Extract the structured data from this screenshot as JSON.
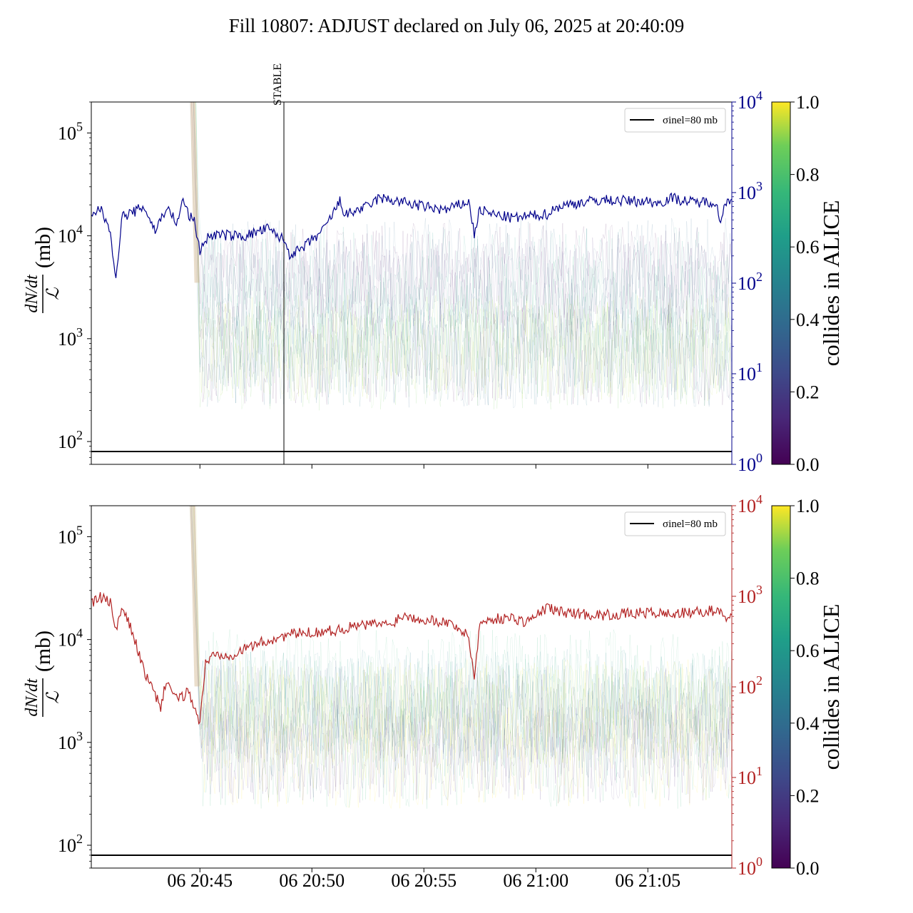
{
  "title": "Fill 10807: ADJUST declared on July 06, 2025 at 20:40:09",
  "colorbar": {
    "label": "collides in ALICE",
    "ticks": [
      "0.0",
      "0.2",
      "0.4",
      "0.6",
      "0.8",
      "1.0"
    ]
  },
  "colors": {
    "top_series": "#00008b",
    "bottom_series": "#b22222",
    "bottom_right_axis": "#b22222",
    "top_right_axis": "#00008b"
  },
  "chart_data": [
    {
      "type": "line",
      "panel": "top",
      "y_label_num": "dN/dt",
      "y_label_den": "ℒ",
      "y_label_unit": "(mb)",
      "y_scale": "log",
      "ylim": [
        60,
        200000
      ],
      "y_ticks": [
        100,
        1000,
        10000,
        100000
      ],
      "y2_scale": "log",
      "y2lim": [
        1,
        10000
      ],
      "y2_ticks": [
        1,
        10,
        100,
        1000,
        10000
      ],
      "x_range": [
        "20:40:09",
        "21:08:45"
      ],
      "x_ticks": [
        "06 20:45",
        "06 20:50",
        "06 20:55",
        "06 21:00",
        "06 21:05"
      ],
      "vline": {
        "label": "STABLE",
        "x": "20:48:45"
      },
      "hline": {
        "label": "σinel=80 mb",
        "value": 80
      },
      "series_main": {
        "axis": "right",
        "x": [
          "20:40:09",
          "20:40:30",
          "20:41:00",
          "20:41:15",
          "20:41:30",
          "20:42:00",
          "20:42:30",
          "20:43:00",
          "20:43:30",
          "20:44:00",
          "20:44:15",
          "20:44:30",
          "20:44:45",
          "20:45:00",
          "20:45:15",
          "20:45:30",
          "20:46:00",
          "20:47:00",
          "20:48:00",
          "20:48:45",
          "20:49:00",
          "20:49:30",
          "20:50:00",
          "20:50:30",
          "20:51:00",
          "20:51:15",
          "20:51:30",
          "20:52:00",
          "20:52:30",
          "20:53:00",
          "20:54:00",
          "20:55:00",
          "20:56:00",
          "20:57:00",
          "20:57:15",
          "20:57:30",
          "20:58:00",
          "20:59:00",
          "21:00:00",
          "21:00:30",
          "21:01:00",
          "21:02:00",
          "21:03:00",
          "21:04:00",
          "21:05:00",
          "21:05:30",
          "21:06:00",
          "21:07:00",
          "21:08:00",
          "21:08:15",
          "21:08:30",
          "21:08:45"
        ],
        "y": [
          520,
          690,
          400,
          100,
          540,
          600,
          700,
          380,
          680,
          460,
          860,
          560,
          480,
          230,
          300,
          340,
          340,
          330,
          400,
          300,
          210,
          230,
          300,
          380,
          620,
          800,
          560,
          640,
          700,
          870,
          790,
          700,
          640,
          800,
          350,
          650,
          580,
          520,
          560,
          580,
          700,
          780,
          830,
          810,
          800,
          760,
          880,
          780,
          800,
          480,
          820,
          850
        ]
      },
      "series_colormap_lines": "many faint per-bunch traces colored by collides in ALICE (0–1), mostly between 1e3 and 1e4 mb after 20:45"
    },
    {
      "type": "line",
      "panel": "bottom",
      "y_label_num": "dN/dt",
      "y_label_den": "ℒ",
      "y_label_unit": "(mb)",
      "y_scale": "log",
      "ylim": [
        60,
        200000
      ],
      "y_ticks": [
        100,
        1000,
        10000,
        100000
      ],
      "y2_scale": "log",
      "y2lim": [
        1,
        10000
      ],
      "y2_ticks": [
        1,
        10,
        100,
        1000,
        10000
      ],
      "x_range": [
        "20:40:09",
        "21:08:45"
      ],
      "x_ticks": [
        "06 20:45",
        "06 20:50",
        "06 20:55",
        "06 21:00",
        "06 21:05"
      ],
      "hline": {
        "label": "σinel=80 mb",
        "value": 80
      },
      "series_main": {
        "axis": "right",
        "x": [
          "20:40:09",
          "20:40:30",
          "20:41:00",
          "20:41:15",
          "20:41:30",
          "20:42:00",
          "20:42:30",
          "20:43:00",
          "20:43:15",
          "20:43:30",
          "20:44:00",
          "20:44:30",
          "20:45:00",
          "20:45:15",
          "20:45:30",
          "20:46:00",
          "20:46:30",
          "20:47:00",
          "20:47:30",
          "20:48:00",
          "20:49:00",
          "20:50:00",
          "20:51:00",
          "20:52:00",
          "20:53:00",
          "20:53:30",
          "20:54:00",
          "20:55:00",
          "20:56:00",
          "20:56:30",
          "20:57:00",
          "20:57:15",
          "20:57:30",
          "20:58:00",
          "20:59:00",
          "20:59:30",
          "21:00:00",
          "21:00:30",
          "21:01:00",
          "21:02:00",
          "21:03:00",
          "21:04:00",
          "21:05:00",
          "21:06:00",
          "21:07:00",
          "21:08:00",
          "21:08:30",
          "21:08:45"
        ],
        "y": [
          820,
          980,
          860,
          400,
          740,
          400,
          150,
          80,
          60,
          120,
          70,
          90,
          40,
          180,
          220,
          230,
          230,
          260,
          300,
          320,
          380,
          400,
          420,
          470,
          500,
          480,
          620,
          560,
          520,
          460,
          350,
          130,
          500,
          560,
          580,
          520,
          600,
          760,
          680,
          640,
          620,
          640,
          660,
          640,
          660,
          700,
          600,
          620
        ]
      },
      "series_colormap_lines": "many faint per-bunch traces colored by collides in ALICE (0–1), mostly between 1e3 and 1e4 mb after 20:45"
    }
  ]
}
